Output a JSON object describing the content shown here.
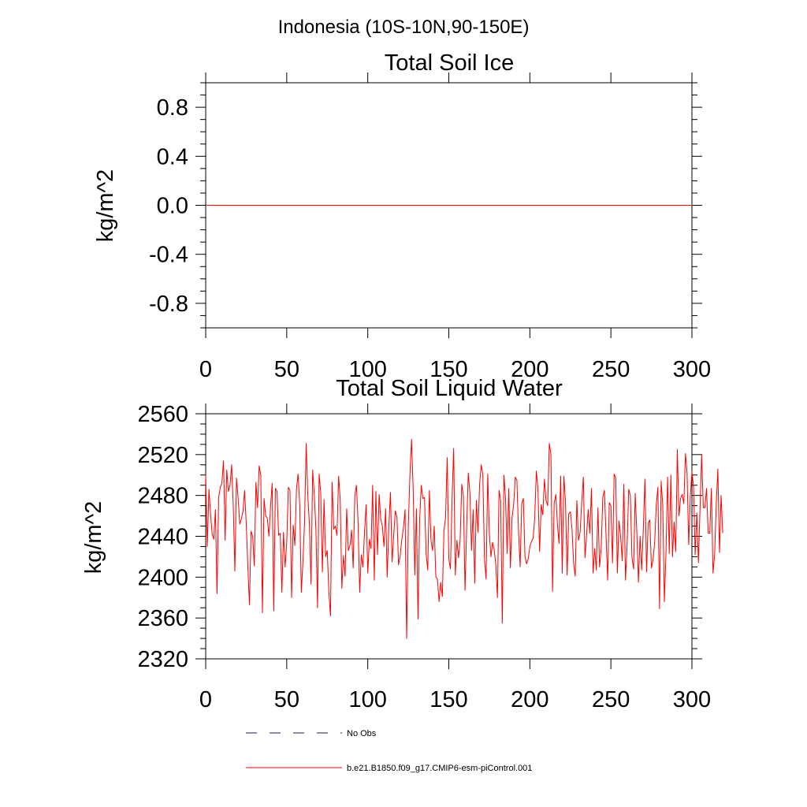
{
  "figure": {
    "suptitle": "Indonesia (10S-10N,90-150E)"
  },
  "legend": {
    "items": [
      {
        "label": "No Obs",
        "style": "dashed",
        "color": "#1a1a55"
      },
      {
        "label": "b.e21.B1850.f09_g17.CMIP6-esm-piControl.001",
        "style": "solid",
        "color": "#ff0000"
      }
    ]
  },
  "chart_data": [
    {
      "type": "line",
      "title": "Total Soil Ice",
      "xlabel": "",
      "ylabel": "kg/m^2",
      "xlim": [
        0,
        300
      ],
      "ylim": [
        -1,
        1
      ],
      "xticks": [
        0,
        50,
        100,
        150,
        200,
        250,
        300
      ],
      "yticks": [
        -0.8,
        -0.4,
        0.0,
        0.4,
        0.8
      ],
      "ytick_labels": [
        "-0.8",
        "-0.4",
        "0.0",
        "0.4",
        "0.8"
      ],
      "grid": false,
      "series": [
        {
          "name": "b.e21.B1850.f09_g17.CMIP6-esm-piControl.001",
          "color": "#ff0000",
          "x": [
            0,
            300
          ],
          "y": [
            0,
            0
          ]
        }
      ]
    },
    {
      "type": "line",
      "title": "Total Soil Liquid Water",
      "xlabel": "",
      "ylabel": "kg/m^2",
      "xlim": [
        0,
        300
      ],
      "ylim": [
        2320,
        2560
      ],
      "xticks": [
        0,
        50,
        100,
        150,
        200,
        250,
        300
      ],
      "yticks": [
        2320,
        2360,
        2400,
        2440,
        2480,
        2520,
        2560
      ],
      "ytick_labels": [
        "2320",
        "2360",
        "2400",
        "2440",
        "2480",
        "2520",
        "2560"
      ],
      "grid": false,
      "series": [
        {
          "name": "b.e21.B1850.f09_g17.CMIP6-esm-piControl.001",
          "color": "#ff0000",
          "x_start": 0,
          "x_step": 1,
          "y": [
            2500,
            2430,
            2486,
            2462,
            2442,
            2437,
            2466,
            2384,
            2478,
            2488,
            2492,
            2514,
            2436,
            2505,
            2484,
            2490,
            2510,
            2471,
            2406,
            2497,
            2478,
            2452,
            2457,
            2464,
            2485,
            2453,
            2411,
            2373,
            2445,
            2440,
            2411,
            2493,
            2468,
            2509,
            2500,
            2365,
            2477,
            2460,
            2458,
            2440,
            2469,
            2492,
            2367,
            2487,
            2484,
            2441,
            2443,
            2385,
            2444,
            2410,
            2434,
            2488,
            2485,
            2380,
            2451,
            2431,
            2486,
            2501,
            2472,
            2385,
            2415,
            2454,
            2531,
            2480,
            2451,
            2393,
            2505,
            2481,
            2447,
            2370,
            2501,
            2482,
            2405,
            2476,
            2420,
            2426,
            2385,
            2362,
            2493,
            2447,
            2450,
            2441,
            2499,
            2476,
            2389,
            2421,
            2401,
            2467,
            2426,
            2431,
            2446,
            2409,
            2480,
            2490,
            2455,
            2385,
            2422,
            2410,
            2444,
            2471,
            2404,
            2437,
            2428,
            2490,
            2397,
            2484,
            2422,
            2481,
            2457,
            2450,
            2430,
            2467,
            2400,
            2449,
            2483,
            2415,
            2441,
            2465,
            2459,
            2412,
            2421,
            2437,
            2448,
            2466,
            2340,
            2449,
            2500,
            2535,
            2487,
            2402,
            2467,
            2359,
            2456,
            2490,
            2477,
            2478,
            2423,
            2407,
            2485,
            2436,
            2426,
            2450,
            2400,
            2398,
            2376,
            2395,
            2381,
            2446,
            2458,
            2517,
            2418,
            2408,
            2476,
            2526,
            2402,
            2436,
            2419,
            2437,
            2491,
            2479,
            2387,
            2448,
            2502,
            2483,
            2426,
            2466,
            2394,
            2475,
            2444,
            2491,
            2510,
            2500,
            2418,
            2398,
            2501,
            2443,
            2420,
            2434,
            2427,
            2412,
            2380,
            2485,
            2475,
            2355,
            2500,
            2477,
            2423,
            2487,
            2409,
            2458,
            2471,
            2498,
            2495,
            2445,
            2410,
            2472,
            2477,
            2420,
            2413,
            2418,
            2430,
            2435,
            2438,
            2458,
            2504,
            2486,
            2425,
            2471,
            2461,
            2496,
            2475,
            2470,
            2531,
            2520,
            2386,
            2472,
            2481,
            2452,
            2433,
            2499,
            2404,
            2499,
            2473,
            2402,
            2462,
            2464,
            2447,
            2414,
            2401,
            2475,
            2436,
            2444,
            2473,
            2498,
            2419,
            2441,
            2466,
            2443,
            2487,
            2404,
            2428,
            2407,
            2468,
            2410,
            2428,
            2478,
            2485,
            2441,
            2397,
            2473,
            2470,
            2414,
            2501,
            2497,
            2404,
            2455,
            2440,
            2416,
            2491,
            2397,
            2431,
            2486,
            2480,
            2419,
            2408,
            2482,
            2444,
            2395,
            2440,
            2407,
            2447,
            2496,
            2405,
            2453,
            2456,
            2409,
            2417,
            2434,
            2471,
            2488,
            2369,
            2494,
            2470,
            2376,
            2424,
            2498,
            2423,
            2500,
            2420,
            2454,
            2425,
            2525,
            2460,
            2477,
            2481,
            2472,
            2521,
            2502,
            2432,
            2479,
            2503,
            2489,
            2422,
            2463,
            2414,
            2468,
            2520,
            2468,
            2468,
            2487,
            2443,
            2443,
            2487,
            2404,
            2422,
            2472,
            2506,
            2424,
            2480,
            2443
          ]
        }
      ]
    }
  ]
}
